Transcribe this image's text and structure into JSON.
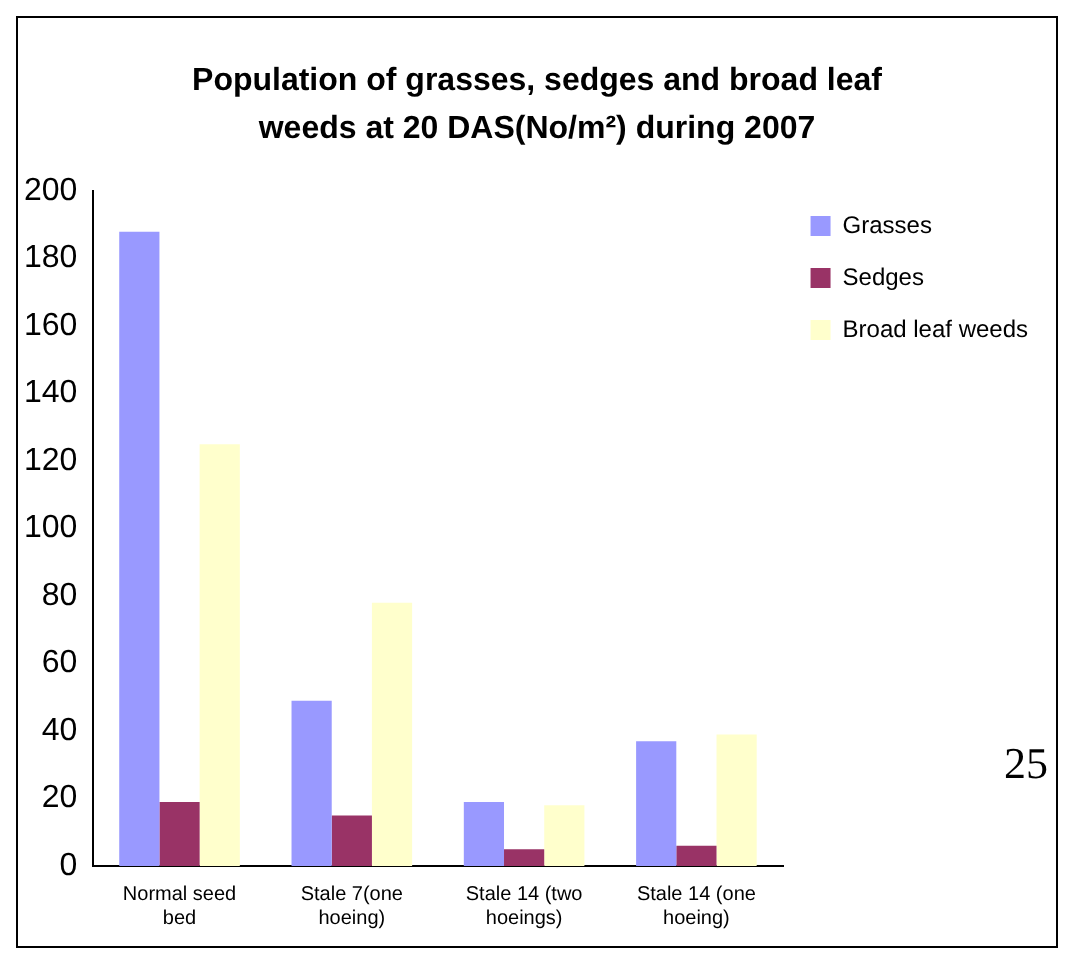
{
  "chart_data": {
    "type": "bar",
    "title": "Population of grasses, sedges and broad leaf weeds at 20 DAS(No/m²) during 2007",
    "categories": [
      "Normal seed bed",
      "Stale 7(one hoeing)",
      "Stale 14 (two hoeings)",
      "Stale 14 (one hoeing)"
    ],
    "series": [
      {
        "name": "Grasses",
        "color": "#9999ff",
        "values": [
          188,
          49,
          19,
          37
        ]
      },
      {
        "name": "Sedges",
        "color": "#993366",
        "values": [
          19,
          15,
          5,
          6
        ]
      },
      {
        "name": "Broad leaf weeds",
        "color": "#ffffcc",
        "values": [
          125,
          78,
          18,
          39
        ]
      }
    ],
    "ylim": [
      0,
      200
    ],
    "yticks": [
      0,
      20,
      40,
      60,
      80,
      100,
      120,
      140,
      160,
      180,
      200
    ],
    "grid": false,
    "legend": "top right",
    "annotations": [
      "25"
    ]
  }
}
